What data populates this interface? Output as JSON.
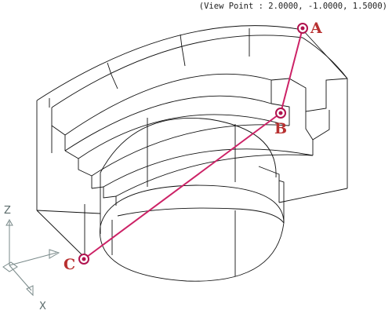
{
  "view_point_label": "(View Point : 2.0000, -1.0000, 1.5000)",
  "points": [
    {
      "id": "A",
      "label": "A"
    },
    {
      "id": "B",
      "label": "B"
    },
    {
      "id": "C",
      "label": "C"
    }
  ],
  "axes": {
    "z": "Z",
    "x": "X"
  },
  "colors": {
    "wireframe": "#111111",
    "path_line": "#cc2266",
    "point_marker": "#b0124e",
    "point_label": "#b83030",
    "axis_icon": "#7a8a8a"
  }
}
